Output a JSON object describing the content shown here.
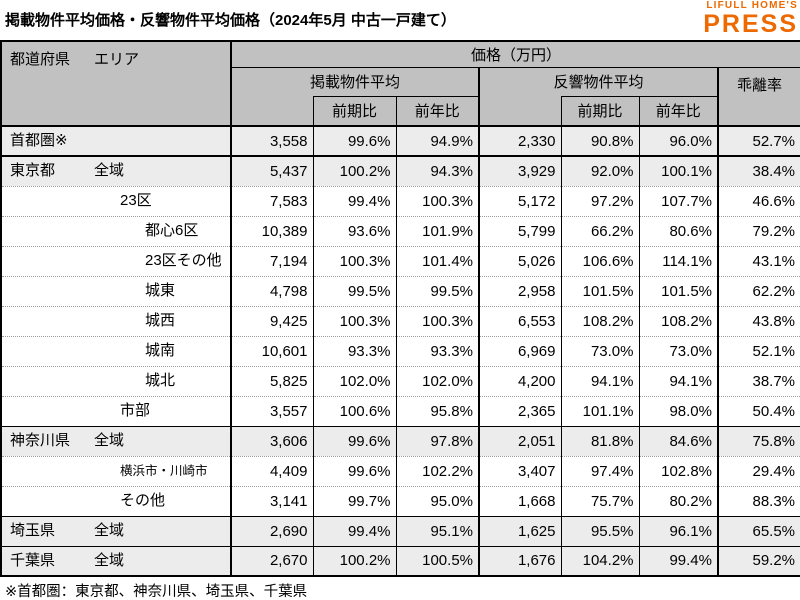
{
  "title": "掲載物件平均価格・反響物件平均価格（2024年5月 中古一戸建て）",
  "footnote": "※首都圏：東京都、神奈川県、埼玉県、千葉県",
  "logo": {
    "brand": "LIFULL HOME'S",
    "name": "PRESS",
    "color": "#ed6a02"
  },
  "colors": {
    "accent_orange": "#ed6a02",
    "header_bg": "#c1c1c1",
    "shaded_row_bg": "#ececec",
    "border": "#000000"
  },
  "table": {
    "header": {
      "prefecture_col": "都道府県",
      "area_col": "エリア",
      "price_unit": "価格（万円）",
      "listed_avg": "掲載物件平均",
      "response_avg": "反響物件平均",
      "deviation_rate": "乖離率",
      "vs_prev_period": "前期比",
      "vs_prev_year": "前年比"
    },
    "rows": [
      {
        "prefecture": "首都圏※",
        "area": "",
        "indent": 0,
        "shaded": true,
        "small": false,
        "sep": "thick",
        "listed_price": "3,558",
        "listed_pp": "99.6%",
        "listed_py": "94.9%",
        "response_price": "2,330",
        "response_pp": "90.8%",
        "response_py": "96.0%",
        "deviation": "52.7%"
      },
      {
        "prefecture": "東京都",
        "area": "全域",
        "indent": 0,
        "shaded": true,
        "small": false,
        "sep": "dotted",
        "listed_price": "5,437",
        "listed_pp": "100.2%",
        "listed_py": "94.3%",
        "response_price": "3,929",
        "response_pp": "92.0%",
        "response_py": "100.1%",
        "deviation": "38.4%"
      },
      {
        "prefecture": "",
        "area": "23区",
        "indent": 1,
        "shaded": false,
        "small": false,
        "sep": "dotted",
        "listed_price": "7,583",
        "listed_pp": "99.4%",
        "listed_py": "100.3%",
        "response_price": "5,172",
        "response_pp": "97.2%",
        "response_py": "107.7%",
        "deviation": "46.6%"
      },
      {
        "prefecture": "",
        "area": "都心6区",
        "indent": 2,
        "shaded": false,
        "small": false,
        "sep": "dotted",
        "listed_price": "10,389",
        "listed_pp": "93.6%",
        "listed_py": "101.9%",
        "response_price": "5,799",
        "response_pp": "66.2%",
        "response_py": "80.6%",
        "deviation": "79.2%"
      },
      {
        "prefecture": "",
        "area": "23区その他",
        "indent": 2,
        "shaded": false,
        "small": false,
        "sep": "dotted",
        "listed_price": "7,194",
        "listed_pp": "100.3%",
        "listed_py": "101.4%",
        "response_price": "5,026",
        "response_pp": "106.6%",
        "response_py": "114.1%",
        "deviation": "43.1%"
      },
      {
        "prefecture": "",
        "area": "城東",
        "indent": 2,
        "shaded": false,
        "small": false,
        "sep": "dotted",
        "listed_price": "4,798",
        "listed_pp": "99.5%",
        "listed_py": "99.5%",
        "response_price": "2,958",
        "response_pp": "101.5%",
        "response_py": "101.5%",
        "deviation": "62.2%"
      },
      {
        "prefecture": "",
        "area": "城西",
        "indent": 2,
        "shaded": false,
        "small": false,
        "sep": "dotted",
        "listed_price": "9,425",
        "listed_pp": "100.3%",
        "listed_py": "100.3%",
        "response_price": "6,553",
        "response_pp": "108.2%",
        "response_py": "108.2%",
        "deviation": "43.8%"
      },
      {
        "prefecture": "",
        "area": "城南",
        "indent": 2,
        "shaded": false,
        "small": false,
        "sep": "dotted",
        "listed_price": "10,601",
        "listed_pp": "93.3%",
        "listed_py": "93.3%",
        "response_price": "6,969",
        "response_pp": "73.0%",
        "response_py": "73.0%",
        "deviation": "52.1%"
      },
      {
        "prefecture": "",
        "area": "城北",
        "indent": 2,
        "shaded": false,
        "small": false,
        "sep": "dotted",
        "listed_price": "5,825",
        "listed_pp": "102.0%",
        "listed_py": "102.0%",
        "response_price": "4,200",
        "response_pp": "94.1%",
        "response_py": "94.1%",
        "deviation": "38.7%"
      },
      {
        "prefecture": "",
        "area": "市部",
        "indent": 1,
        "shaded": false,
        "small": false,
        "sep": "solid",
        "listed_price": "3,557",
        "listed_pp": "100.6%",
        "listed_py": "95.8%",
        "response_price": "2,365",
        "response_pp": "101.1%",
        "response_py": "98.0%",
        "deviation": "50.4%"
      },
      {
        "prefecture": "神奈川県",
        "area": "全域",
        "indent": 0,
        "shaded": true,
        "small": false,
        "sep": "dotted",
        "listed_price": "3,606",
        "listed_pp": "99.6%",
        "listed_py": "97.8%",
        "response_price": "2,051",
        "response_pp": "81.8%",
        "response_py": "84.6%",
        "deviation": "75.8%"
      },
      {
        "prefecture": "",
        "area": "横浜市・川崎市",
        "indent": 1,
        "shaded": false,
        "small": true,
        "sep": "dotted",
        "listed_price": "4,409",
        "listed_pp": "99.6%",
        "listed_py": "102.2%",
        "response_price": "3,407",
        "response_pp": "97.4%",
        "response_py": "102.8%",
        "deviation": "29.4%"
      },
      {
        "prefecture": "",
        "area": "その他",
        "indent": 1,
        "shaded": false,
        "small": false,
        "sep": "solid",
        "listed_price": "3,141",
        "listed_pp": "99.7%",
        "listed_py": "95.0%",
        "response_price": "1,668",
        "response_pp": "75.7%",
        "response_py": "80.2%",
        "deviation": "88.3%"
      },
      {
        "prefecture": "埼玉県",
        "area": "全域",
        "indent": 0,
        "shaded": true,
        "small": false,
        "sep": "solid",
        "listed_price": "2,690",
        "listed_pp": "99.4%",
        "listed_py": "95.1%",
        "response_price": "1,625",
        "response_pp": "95.5%",
        "response_py": "96.1%",
        "deviation": "65.5%"
      },
      {
        "prefecture": "千葉県",
        "area": "全域",
        "indent": 0,
        "shaded": true,
        "small": false,
        "sep": "none",
        "listed_price": "2,670",
        "listed_pp": "100.2%",
        "listed_py": "100.5%",
        "response_price": "1,676",
        "response_pp": "104.2%",
        "response_py": "99.4%",
        "deviation": "59.2%"
      }
    ]
  },
  "chart_data": {
    "type": "table",
    "title": "掲載物件平均価格・反響物件平均価格（2024年5月 中古一戸建て）",
    "columns": [
      "都道府県",
      "エリア",
      "掲載物件平均 価格(万円)",
      "掲載 前期比",
      "掲載 前年比",
      "反響物件平均 価格(万円)",
      "反響 前期比",
      "反響 前年比",
      "乖離率"
    ],
    "rows": [
      [
        "首都圏※",
        "",
        3558,
        "99.6%",
        "94.9%",
        2330,
        "90.8%",
        "96.0%",
        "52.7%"
      ],
      [
        "東京都",
        "全域",
        5437,
        "100.2%",
        "94.3%",
        3929,
        "92.0%",
        "100.1%",
        "38.4%"
      ],
      [
        "東京都",
        "23区",
        7583,
        "99.4%",
        "100.3%",
        5172,
        "97.2%",
        "107.7%",
        "46.6%"
      ],
      [
        "東京都",
        "都心6区",
        10389,
        "93.6%",
        "101.9%",
        5799,
        "66.2%",
        "80.6%",
        "79.2%"
      ],
      [
        "東京都",
        "23区その他",
        7194,
        "100.3%",
        "101.4%",
        5026,
        "106.6%",
        "114.1%",
        "43.1%"
      ],
      [
        "東京都",
        "城東",
        4798,
        "99.5%",
        "99.5%",
        2958,
        "101.5%",
        "101.5%",
        "62.2%"
      ],
      [
        "東京都",
        "城西",
        9425,
        "100.3%",
        "100.3%",
        6553,
        "108.2%",
        "108.2%",
        "43.8%"
      ],
      [
        "東京都",
        "城南",
        10601,
        "93.3%",
        "93.3%",
        6969,
        "73.0%",
        "73.0%",
        "52.1%"
      ],
      [
        "東京都",
        "城北",
        5825,
        "102.0%",
        "102.0%",
        4200,
        "94.1%",
        "94.1%",
        "38.7%"
      ],
      [
        "東京都",
        "市部",
        3557,
        "100.6%",
        "95.8%",
        2365,
        "101.1%",
        "98.0%",
        "50.4%"
      ],
      [
        "神奈川県",
        "全域",
        3606,
        "99.6%",
        "97.8%",
        2051,
        "81.8%",
        "84.6%",
        "75.8%"
      ],
      [
        "神奈川県",
        "横浜市・川崎市",
        4409,
        "99.6%",
        "102.2%",
        3407,
        "97.4%",
        "102.8%",
        "29.4%"
      ],
      [
        "神奈川県",
        "その他",
        3141,
        "99.7%",
        "95.0%",
        1668,
        "75.7%",
        "80.2%",
        "88.3%"
      ],
      [
        "埼玉県",
        "全域",
        2690,
        "99.4%",
        "95.1%",
        1625,
        "95.5%",
        "96.1%",
        "65.5%"
      ],
      [
        "千葉県",
        "全域",
        2670,
        "100.2%",
        "100.5%",
        1676,
        "104.2%",
        "99.4%",
        "59.2%"
      ]
    ]
  }
}
